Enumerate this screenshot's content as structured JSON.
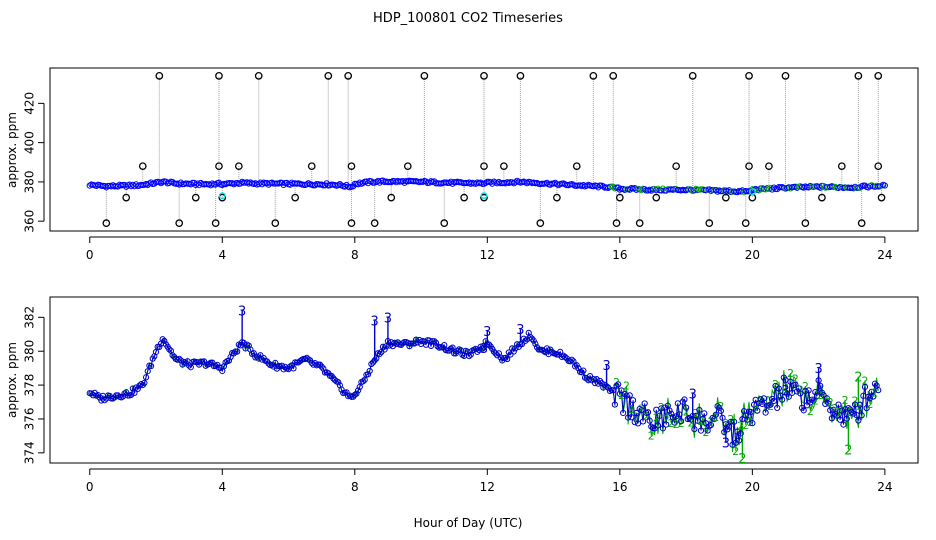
{
  "figure": {
    "title": "HDP_100801  CO2 Timeseries",
    "xlabel": "Hour of Day (UTC)"
  },
  "chart_data": [
    {
      "type": "scatter",
      "name": "top-panel",
      "xlabel": "",
      "ylabel": "approx. ppm",
      "xlim": [
        -1.2,
        25
      ],
      "ylim": [
        355,
        438
      ],
      "xticks": [
        0,
        4,
        8,
        12,
        16,
        20,
        24
      ],
      "yticks": [
        360,
        380,
        400,
        420
      ],
      "colors": {
        "baseline": "#0000ff",
        "cyan": "#00e5ee",
        "green": "#00aa00",
        "outlier": "#000000",
        "connector": "#a0a0a0"
      },
      "baseline_knots": {
        "x": [
          0.0,
          0.5,
          1.0,
          1.5,
          2.0,
          2.2,
          2.6,
          3.0,
          3.5,
          3.9,
          4.0,
          4.6,
          5.0,
          6.0,
          7.0,
          7.5,
          7.9,
          8.0,
          8.5,
          9.0,
          10.0,
          11.0,
          11.9,
          12.0,
          13.0,
          14.0,
          15.0,
          15.6,
          16.0,
          17.0,
          18.0,
          19.0,
          19.9,
          20.0,
          21.0,
          22.0,
          23.0,
          23.8
        ],
        "y": [
          378.5,
          377.8,
          378.0,
          378.3,
          379.5,
          380.0,
          379.2,
          379.0,
          378.8,
          379.0,
          378.9,
          379.5,
          379.2,
          379.0,
          378.8,
          378.5,
          377.5,
          379.0,
          380.0,
          380.2,
          380.0,
          379.5,
          379.3,
          379.5,
          380.0,
          379.0,
          378.0,
          377.5,
          376.5,
          376.0,
          376.0,
          375.5,
          375.0,
          376.0,
          377.0,
          377.5,
          377.2,
          378.0
        ]
      },
      "cyan_points": {
        "x": [
          4.0,
          11.9,
          20.0
        ],
        "y": [
          373.0,
          373.0,
          375.0
        ]
      },
      "high_spikes": {
        "x": [
          2.1,
          3.9,
          5.1,
          7.2,
          7.8,
          10.1,
          11.9,
          13.0,
          15.2,
          15.8,
          18.2,
          19.9,
          21.0,
          23.2,
          23.8
        ],
        "y": [
          434,
          434,
          434,
          434,
          434,
          434,
          434,
          434,
          434,
          434,
          434,
          434,
          434,
          434,
          434
        ]
      },
      "mid_spikes": {
        "x": [
          1.6,
          3.9,
          4.5,
          6.7,
          7.9,
          9.6,
          11.9,
          12.5,
          14.7,
          17.7,
          19.9,
          20.5,
          22.7,
          23.8
        ],
        "y": [
          388,
          388,
          388,
          388,
          388,
          388,
          388,
          388,
          388,
          388,
          388,
          388,
          388,
          388
        ]
      },
      "low_spikes": {
        "x": [
          0.5,
          1.1,
          2.7,
          3.2,
          3.8,
          4.0,
          5.6,
          6.2,
          7.9,
          8.6,
          9.1,
          10.7,
          11.3,
          11.9,
          13.6,
          14.1,
          15.9,
          16.0,
          16.6,
          17.1,
          18.7,
          19.2,
          19.8,
          20.0,
          21.6,
          22.1,
          23.3,
          23.9
        ],
        "y": [
          359,
          372,
          359,
          372,
          359,
          372,
          359,
          372,
          359,
          359,
          372,
          359,
          372,
          372,
          359,
          372,
          359,
          372,
          359,
          372,
          359,
          372,
          359,
          372,
          359,
          372,
          359,
          372
        ]
      }
    },
    {
      "type": "line",
      "name": "bottom-panel",
      "xlabel": "Hour of Day (UTC)",
      "ylabel": "approx. ppm",
      "xlim": [
        -1.2,
        25
      ],
      "ylim": [
        373.4,
        383.2
      ],
      "xticks": [
        0,
        4,
        8,
        12,
        16,
        20,
        24
      ],
      "yticks": [
        374,
        376,
        378,
        380,
        382
      ],
      "marker_labels": {
        "series_3": "3",
        "series_2": "2"
      },
      "colors": {
        "series_3": "#0000cc",
        "series_2": "#00aa00"
      },
      "knots": {
        "x": [
          0.0,
          0.3,
          0.8,
          1.2,
          1.6,
          2.0,
          2.2,
          2.6,
          3.0,
          3.5,
          4.0,
          4.4,
          4.6,
          5.0,
          5.5,
          6.0,
          6.5,
          7.0,
          7.5,
          7.9,
          8.2,
          8.6,
          9.0,
          9.5,
          10.0,
          10.5,
          11.0,
          11.5,
          12.0,
          12.5,
          13.0,
          13.3,
          13.6,
          14.0,
          14.5,
          15.0,
          15.5,
          16.0,
          16.5,
          17.0,
          17.5,
          18.0,
          18.5,
          19.0,
          19.5,
          20.0,
          20.5,
          21.0,
          21.5,
          22.0,
          22.5,
          23.0,
          23.5,
          23.8
        ],
        "y": [
          377.6,
          377.2,
          377.4,
          377.5,
          378.0,
          380.0,
          380.8,
          379.5,
          379.2,
          379.3,
          379.0,
          380.0,
          380.5,
          379.8,
          379.2,
          379.0,
          379.5,
          379.0,
          378.0,
          377.2,
          378.0,
          379.5,
          380.5,
          380.4,
          380.6,
          380.4,
          380.0,
          379.8,
          380.5,
          379.5,
          380.5,
          381.0,
          380.0,
          380.0,
          379.5,
          378.5,
          378.0,
          377.2,
          376.5,
          375.8,
          376.2,
          376.5,
          375.8,
          376.0,
          375.0,
          376.5,
          376.8,
          377.8,
          377.2,
          377.5,
          376.5,
          376.0,
          377.5,
          378.0
        ]
      },
      "labeled_spikes": [
        {
          "x": 4.6,
          "y": 382.4,
          "label": "3"
        },
        {
          "x": 8.6,
          "y": 381.8,
          "label": "3"
        },
        {
          "x": 9.0,
          "y": 382.0,
          "label": "3"
        },
        {
          "x": 11.9,
          "y": 380.2,
          "label": "3"
        },
        {
          "x": 12.0,
          "y": 381.2,
          "label": "3"
        },
        {
          "x": 13.0,
          "y": 381.3,
          "label": "3"
        },
        {
          "x": 15.6,
          "y": 379.2,
          "label": "3"
        },
        {
          "x": 18.2,
          "y": 377.5,
          "label": "3"
        },
        {
          "x": 19.2,
          "y": 374.6,
          "label": "3"
        },
        {
          "x": 19.7,
          "y": 373.7,
          "label": "2"
        },
        {
          "x": 21.0,
          "y": 377.7,
          "label": "3"
        },
        {
          "x": 22.0,
          "y": 379.0,
          "label": "3"
        },
        {
          "x": 22.9,
          "y": 374.2,
          "label": "2"
        },
        {
          "x": 23.2,
          "y": 378.5,
          "label": "2"
        }
      ]
    }
  ]
}
